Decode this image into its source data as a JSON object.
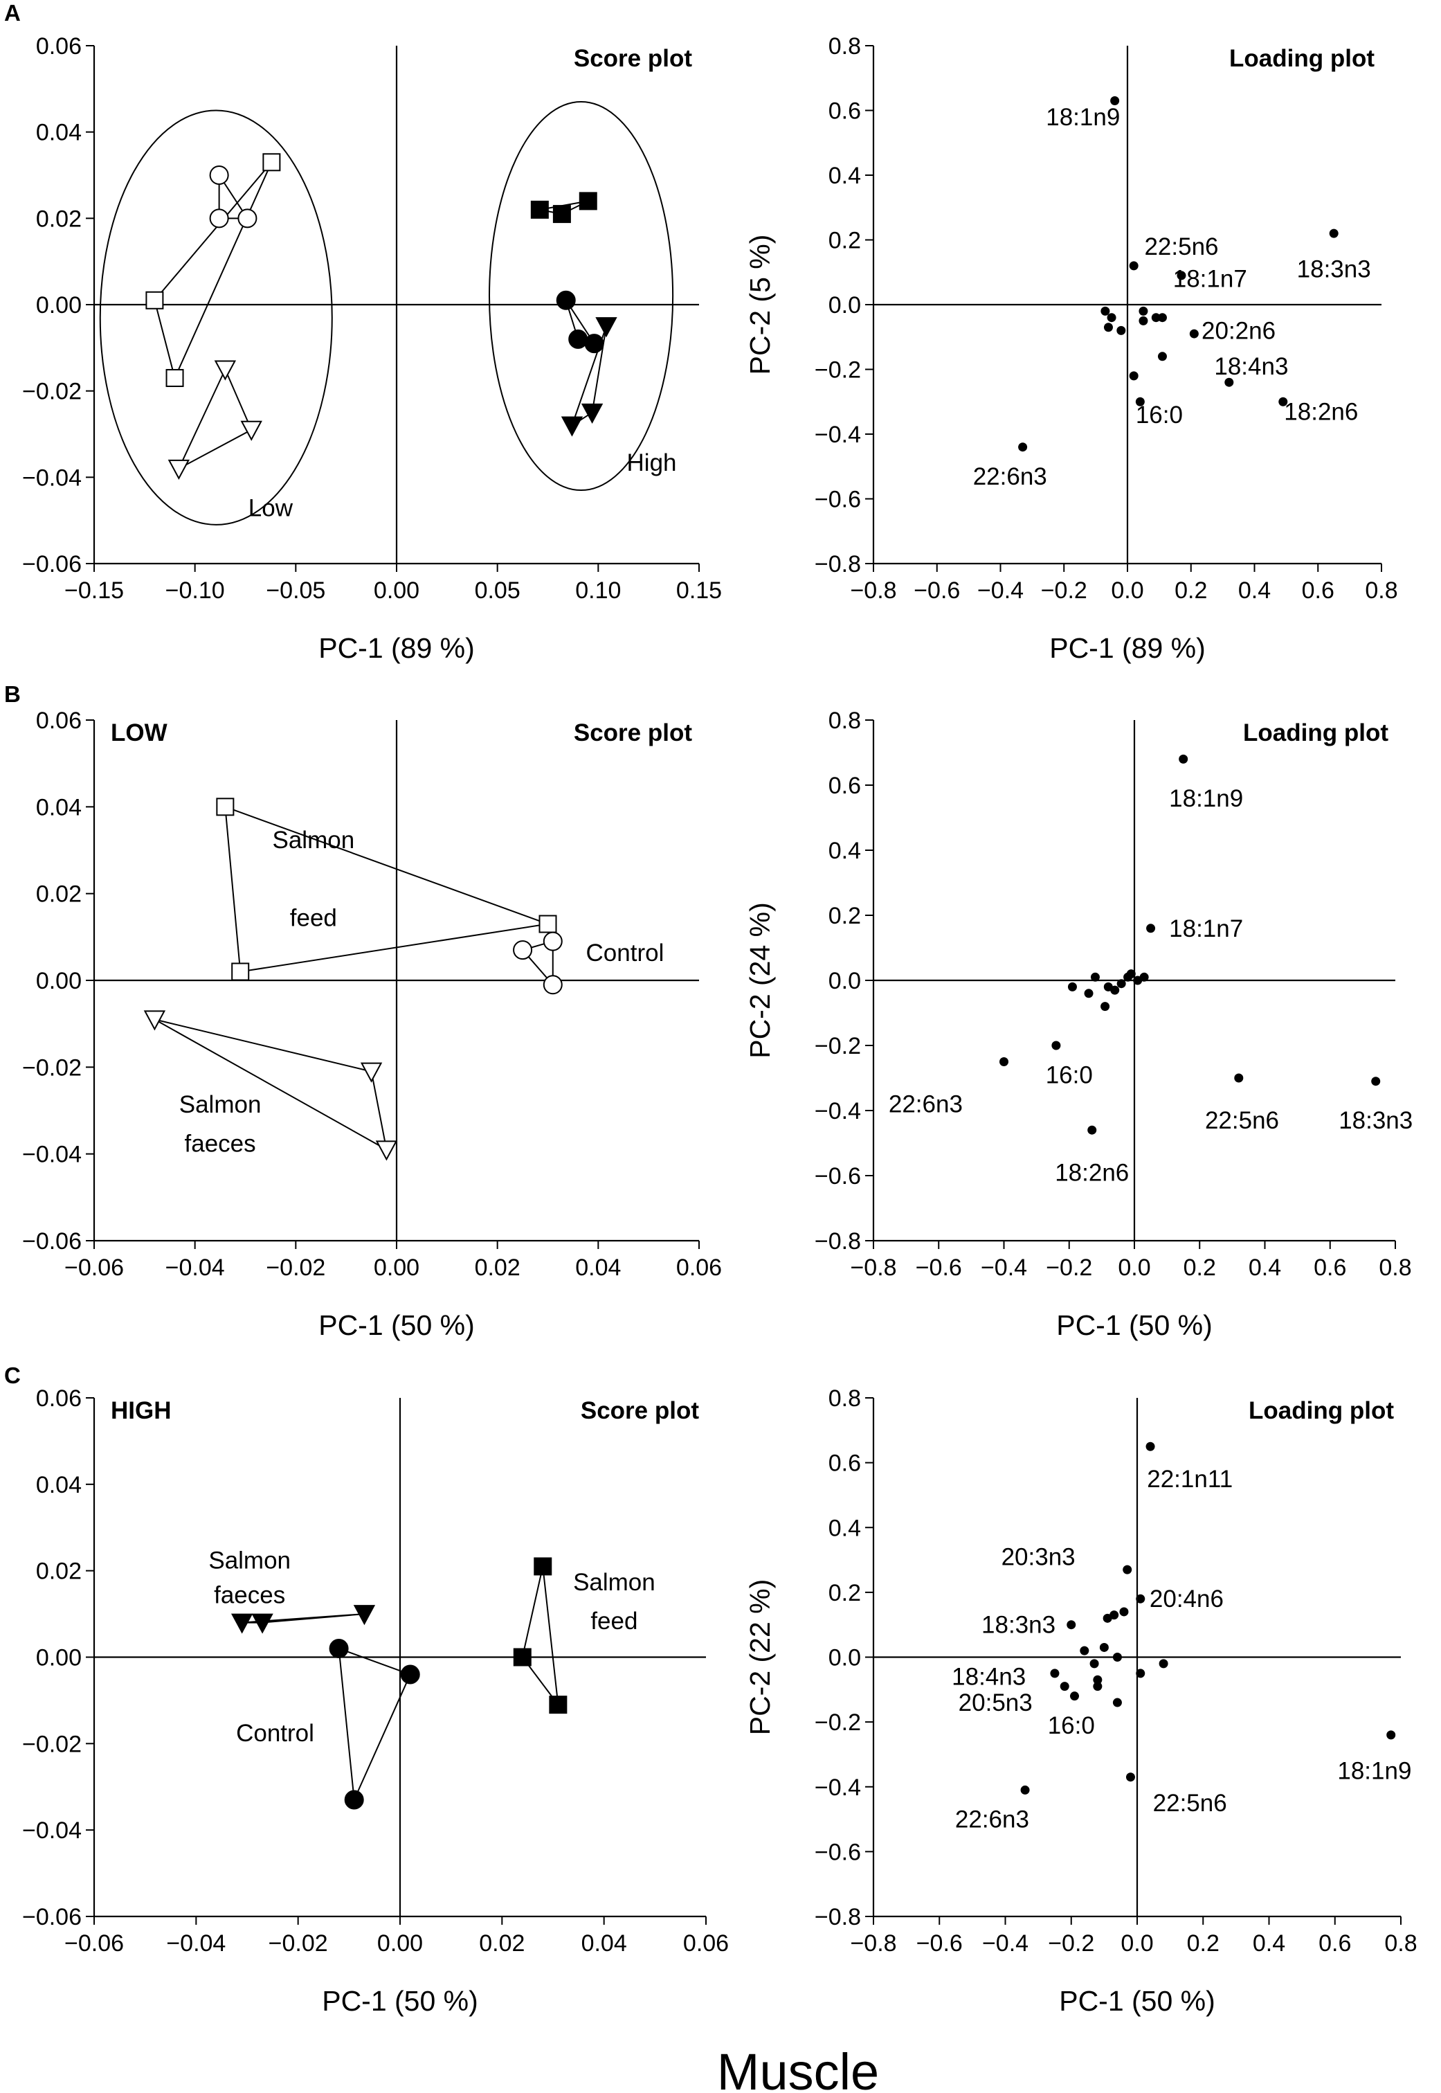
{
  "footer_label": "Muscle",
  "panel_letters": [
    "A",
    "B",
    "C"
  ],
  "chart_data": [
    {
      "id": "A-score",
      "type": "scatter",
      "title": "Score plot",
      "tag": "",
      "xlabel": "PC-1 (89 %)",
      "ylabel": "PC-2 (5 %)",
      "xlim": [
        -0.15,
        0.15
      ],
      "ylim": [
        -0.06,
        0.06
      ],
      "xticks": [
        -0.15,
        -0.1,
        -0.05,
        0.0,
        0.05,
        0.1,
        0.15
      ],
      "yticks": [
        -0.06,
        -0.04,
        -0.02,
        0.0,
        0.02,
        0.04,
        0.06
      ],
      "xdec": 2,
      "ydec": 2,
      "groups": [
        {
          "name": "low-squares",
          "marker": "square",
          "filled": false,
          "points": [
            [
              -0.12,
              0.001
            ],
            [
              -0.062,
              0.033
            ],
            [
              -0.11,
              -0.017
            ]
          ]
        },
        {
          "name": "low-circles",
          "marker": "circle",
          "filled": false,
          "points": [
            [
              -0.088,
              0.03
            ],
            [
              -0.074,
              0.02
            ],
            [
              -0.088,
              0.02
            ]
          ]
        },
        {
          "name": "low-triangles",
          "marker": "triangle-down",
          "filled": false,
          "points": [
            [
              -0.085,
              -0.015
            ],
            [
              -0.072,
              -0.029
            ],
            [
              -0.108,
              -0.038
            ]
          ]
        },
        {
          "name": "high-squares",
          "marker": "square",
          "filled": true,
          "points": [
            [
              0.071,
              0.022
            ],
            [
              0.082,
              0.021
            ],
            [
              0.095,
              0.024
            ]
          ]
        },
        {
          "name": "high-circles",
          "marker": "circle",
          "filled": true,
          "points": [
            [
              0.084,
              0.001
            ],
            [
              0.09,
              -0.008
            ],
            [
              0.098,
              -0.009
            ]
          ]
        },
        {
          "name": "high-triangles",
          "marker": "triangle-down",
          "filled": true,
          "points": [
            [
              0.104,
              -0.005
            ],
            [
              0.087,
              -0.028
            ],
            [
              0.097,
              -0.025
            ]
          ]
        }
      ],
      "ellipses": [
        {
          "name": "low-ellipse",
          "cx": -0.0895,
          "cy": -0.003,
          "rx": 0.0575,
          "ry": 0.048
        },
        {
          "name": "high-ellipse",
          "cx": 0.0915,
          "cy": 0.002,
          "rx": 0.0455,
          "ry": 0.045
        }
      ],
      "annotations": [
        {
          "text": "Low",
          "x": -0.0625,
          "y": -0.049
        },
        {
          "text": "High",
          "x": 0.1265,
          "y": -0.0385
        }
      ]
    },
    {
      "id": "A-loading",
      "type": "scatter",
      "title": "Loading plot",
      "tag": "",
      "xlabel": "PC-1 (89 %)",
      "ylabel": "PC-2 (5 %)",
      "xlim": [
        -0.8,
        0.8
      ],
      "ylim": [
        -0.8,
        0.8
      ],
      "xticks": [
        -0.8,
        -0.6,
        -0.4,
        -0.2,
        0.0,
        0.2,
        0.4,
        0.6,
        0.8
      ],
      "yticks": [
        -0.8,
        -0.6,
        -0.4,
        -0.2,
        0.0,
        0.2,
        0.4,
        0.6,
        0.8
      ],
      "xdec": 1,
      "ydec": 1,
      "points": [
        {
          "x": -0.04,
          "y": 0.63,
          "label": "18:1n9",
          "lx": -0.14,
          "ly": 0.58
        },
        {
          "x": 0.65,
          "y": 0.22,
          "label": "18:3n3",
          "lx": 0.65,
          "ly": 0.11
        },
        {
          "x": 0.02,
          "y": 0.12,
          "label": "22:5n6",
          "lx": 0.17,
          "ly": 0.18
        },
        {
          "x": 0.17,
          "y": 0.09,
          "label": "18:1n7",
          "lx": 0.26,
          "ly": 0.08
        },
        {
          "x": 0.21,
          "y": -0.09,
          "label": "20:2n6",
          "lx": 0.35,
          "ly": -0.08
        },
        {
          "x": 0.32,
          "y": -0.24,
          "label": "18:4n3",
          "lx": 0.39,
          "ly": -0.19
        },
        {
          "x": 0.49,
          "y": -0.3,
          "label": "18:2n6",
          "lx": 0.61,
          "ly": -0.33
        },
        {
          "x": 0.04,
          "y": -0.3,
          "label": "16:0",
          "lx": 0.1,
          "ly": -0.34
        },
        {
          "x": -0.33,
          "y": -0.44,
          "label": "22:6n3",
          "lx": -0.37,
          "ly": -0.53
        },
        {
          "x": -0.07,
          "y": -0.02
        },
        {
          "x": -0.05,
          "y": -0.04
        },
        {
          "x": -0.06,
          "y": -0.07
        },
        {
          "x": -0.02,
          "y": -0.08
        },
        {
          "x": 0.05,
          "y": -0.02
        },
        {
          "x": 0.05,
          "y": -0.05
        },
        {
          "x": 0.09,
          "y": -0.04
        },
        {
          "x": 0.11,
          "y": -0.04
        },
        {
          "x": 0.11,
          "y": -0.16
        },
        {
          "x": 0.02,
          "y": -0.22
        }
      ]
    },
    {
      "id": "B-score",
      "type": "scatter",
      "title": "Score plot",
      "tag": "LOW",
      "xlabel": "PC-1 (50 %)",
      "ylabel": "PC-2 (24 %)",
      "xlim": [
        -0.06,
        0.06
      ],
      "ylim": [
        -0.06,
        0.06
      ],
      "xticks": [
        -0.06,
        -0.04,
        -0.02,
        0.0,
        0.02,
        0.04,
        0.06
      ],
      "yticks": [
        -0.06,
        -0.04,
        -0.02,
        0.0,
        0.02,
        0.04,
        0.06
      ],
      "xdec": 2,
      "ydec": 2,
      "groups": [
        {
          "name": "salmon-feed-squares",
          "marker": "square",
          "filled": false,
          "points": [
            [
              -0.034,
              0.04
            ],
            [
              0.03,
              0.013
            ],
            [
              -0.031,
              0.002
            ]
          ]
        },
        {
          "name": "control-circles",
          "marker": "circle",
          "filled": false,
          "points": [
            [
              0.025,
              0.007
            ],
            [
              0.031,
              0.009
            ],
            [
              0.031,
              -0.001
            ]
          ]
        },
        {
          "name": "salmon-faeces-triangles",
          "marker": "triangle-down",
          "filled": false,
          "points": [
            [
              -0.048,
              -0.009
            ],
            [
              -0.005,
              -0.021
            ],
            [
              -0.002,
              -0.039
            ]
          ]
        }
      ],
      "ellipses": [],
      "annotations": [
        {
          "text": "Salmon",
          "x": -0.0165,
          "y": 0.0305
        },
        {
          "text": "feed",
          "x": -0.0165,
          "y": 0.0125
        },
        {
          "text": "Control",
          "x": 0.0453,
          "y": 0.0045
        },
        {
          "text": "Salmon",
          "x": -0.035,
          "y": -0.0305
        },
        {
          "text": "faeces",
          "x": -0.035,
          "y": -0.0395
        }
      ]
    },
    {
      "id": "B-loading",
      "type": "scatter",
      "title": "Loading plot",
      "tag": "",
      "xlabel": "PC-1 (50 %)",
      "ylabel": "PC-2 (24 %)",
      "xlim": [
        -0.8,
        0.8
      ],
      "ylim": [
        -0.8,
        0.8
      ],
      "xticks": [
        -0.8,
        -0.6,
        -0.4,
        -0.2,
        0.0,
        0.2,
        0.4,
        0.6,
        0.8
      ],
      "yticks": [
        -0.8,
        -0.6,
        -0.4,
        -0.2,
        0.0,
        0.2,
        0.4,
        0.6,
        0.8
      ],
      "xdec": 1,
      "ydec": 1,
      "points": [
        {
          "x": 0.15,
          "y": 0.68,
          "label": "18:1n9",
          "lx": 0.22,
          "ly": 0.56
        },
        {
          "x": 0.05,
          "y": 0.16,
          "label": "18:1n7",
          "lx": 0.22,
          "ly": 0.16
        },
        {
          "x": -0.4,
          "y": -0.25,
          "label": "22:6n3",
          "lx": -0.64,
          "ly": -0.38
        },
        {
          "x": -0.24,
          "y": -0.2,
          "label": "16:0",
          "lx": -0.2,
          "ly": -0.29
        },
        {
          "x": 0.32,
          "y": -0.3,
          "label": "22:5n6",
          "lx": 0.33,
          "ly": -0.43
        },
        {
          "x": 0.74,
          "y": -0.31,
          "label": "18:3n3",
          "lx": 0.74,
          "ly": -0.43
        },
        {
          "x": -0.13,
          "y": -0.46,
          "label": "18:2n6",
          "lx": -0.13,
          "ly": -0.59
        },
        {
          "x": -0.19,
          "y": -0.02
        },
        {
          "x": -0.14,
          "y": -0.04
        },
        {
          "x": -0.12,
          "y": 0.01
        },
        {
          "x": -0.08,
          "y": -0.02
        },
        {
          "x": -0.06,
          "y": -0.03
        },
        {
          "x": -0.04,
          "y": -0.01
        },
        {
          "x": -0.02,
          "y": 0.01
        },
        {
          "x": -0.01,
          "y": 0.02
        },
        {
          "x": 0.01,
          "y": 0.0
        },
        {
          "x": 0.03,
          "y": 0.01
        },
        {
          "x": -0.09,
          "y": -0.08
        }
      ]
    },
    {
      "id": "C-score",
      "type": "scatter",
      "title": "Score plot",
      "tag": "HIGH",
      "xlabel": "PC-1 (50 %)",
      "ylabel": "PC-2 (22 %)",
      "xlim": [
        -0.06,
        0.06
      ],
      "ylim": [
        -0.06,
        0.06
      ],
      "xticks": [
        -0.06,
        -0.04,
        -0.02,
        0.0,
        0.02,
        0.04,
        0.06
      ],
      "yticks": [
        -0.06,
        -0.04,
        -0.02,
        0.0,
        0.02,
        0.04,
        0.06
      ],
      "xdec": 2,
      "ydec": 2,
      "groups": [
        {
          "name": "salmon-faeces-triangles",
          "marker": "triangle-down",
          "filled": true,
          "points": [
            [
              -0.031,
              0.008
            ],
            [
              -0.027,
              0.008
            ],
            [
              -0.007,
              0.01
            ]
          ]
        },
        {
          "name": "control-circles",
          "marker": "circle",
          "filled": true,
          "points": [
            [
              -0.012,
              0.002
            ],
            [
              0.002,
              -0.004
            ],
            [
              -0.009,
              -0.033
            ]
          ]
        },
        {
          "name": "salmon-feed-squares",
          "marker": "square",
          "filled": true,
          "points": [
            [
              0.028,
              0.021
            ],
            [
              0.031,
              -0.011
            ],
            [
              0.024,
              0.0
            ]
          ]
        }
      ],
      "ellipses": [],
      "annotations": [
        {
          "text": "Salmon",
          "x": -0.0295,
          "y": 0.0205
        },
        {
          "text": "faeces",
          "x": -0.0295,
          "y": 0.0125
        },
        {
          "text": "Control",
          "x": -0.0245,
          "y": -0.0195
        },
        {
          "text": "Salmon",
          "x": 0.042,
          "y": 0.0155
        },
        {
          "text": "feed",
          "x": 0.042,
          "y": 0.0065
        }
      ]
    },
    {
      "id": "C-loading",
      "type": "scatter",
      "title": "Loading plot",
      "tag": "",
      "xlabel": "PC-1 (50 %)",
      "ylabel": "PC-2 (22 %)",
      "xlim": [
        -0.8,
        0.8
      ],
      "ylim": [
        -0.8,
        0.8
      ],
      "xticks": [
        -0.8,
        -0.6,
        -0.4,
        -0.2,
        0.0,
        0.2,
        0.4,
        0.6,
        0.8
      ],
      "yticks": [
        -0.8,
        -0.6,
        -0.4,
        -0.2,
        0.0,
        0.2,
        0.4,
        0.6,
        0.8
      ],
      "xdec": 1,
      "ydec": 1,
      "points": [
        {
          "x": 0.04,
          "y": 0.65,
          "label": "22:1n11",
          "lx": 0.16,
          "ly": 0.55
        },
        {
          "x": -0.03,
          "y": 0.27,
          "label": "20:3n3",
          "lx": -0.3,
          "ly": 0.31
        },
        {
          "x": 0.01,
          "y": 0.18,
          "label": "20:4n6",
          "lx": 0.15,
          "ly": 0.18
        },
        {
          "x": -0.2,
          "y": 0.1,
          "label": "18:3n3",
          "lx": -0.36,
          "ly": 0.1
        },
        {
          "x": -0.25,
          "y": -0.05,
          "label": "18:4n3",
          "lx": -0.45,
          "ly": -0.06
        },
        {
          "x": -0.19,
          "y": -0.12,
          "label": "20:5n3",
          "lx": -0.43,
          "ly": -0.14
        },
        {
          "x": -0.12,
          "y": -0.09,
          "label": "16:0",
          "lx": -0.2,
          "ly": -0.21
        },
        {
          "x": -0.34,
          "y": -0.41,
          "label": "22:6n3",
          "lx": -0.44,
          "ly": -0.5
        },
        {
          "x": -0.02,
          "y": -0.37,
          "label": "22:5n6",
          "lx": 0.16,
          "ly": -0.45
        },
        {
          "x": 0.77,
          "y": -0.24,
          "label": "18:1n9",
          "lx": 0.72,
          "ly": -0.35
        },
        {
          "x": -0.09,
          "y": 0.12
        },
        {
          "x": -0.07,
          "y": 0.13
        },
        {
          "x": -0.04,
          "y": 0.14
        },
        {
          "x": -0.16,
          "y": 0.02
        },
        {
          "x": -0.1,
          "y": 0.03
        },
        {
          "x": -0.06,
          "y": 0.0
        },
        {
          "x": -0.13,
          "y": -0.02
        },
        {
          "x": -0.22,
          "y": -0.09
        },
        {
          "x": -0.12,
          "y": -0.07
        },
        {
          "x": -0.06,
          "y": -0.14
        },
        {
          "x": 0.01,
          "y": -0.05
        },
        {
          "x": 0.08,
          "y": -0.02
        }
      ]
    }
  ]
}
